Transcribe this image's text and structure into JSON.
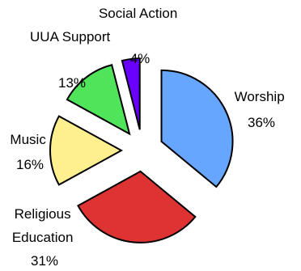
{
  "chart_data": {
    "type": "pie",
    "title": "",
    "slices": [
      {
        "name": "Worship",
        "value": 36,
        "label": "36%",
        "color": "#66A6FF"
      },
      {
        "name": "Religious Education",
        "value": 31,
        "label": "31%",
        "color": "#DD3333"
      },
      {
        "name": "Music",
        "value": 16,
        "label": "16%",
        "color": "#FFF08F"
      },
      {
        "name": "UUA Support",
        "value": 13,
        "label": "13%",
        "color": "#4FE45A"
      },
      {
        "name": "Social Action",
        "value": 4,
        "label": "4%",
        "color": "#6A00FF"
      }
    ],
    "slice_outline_color": "#000000",
    "legend": "none",
    "grid": false
  }
}
